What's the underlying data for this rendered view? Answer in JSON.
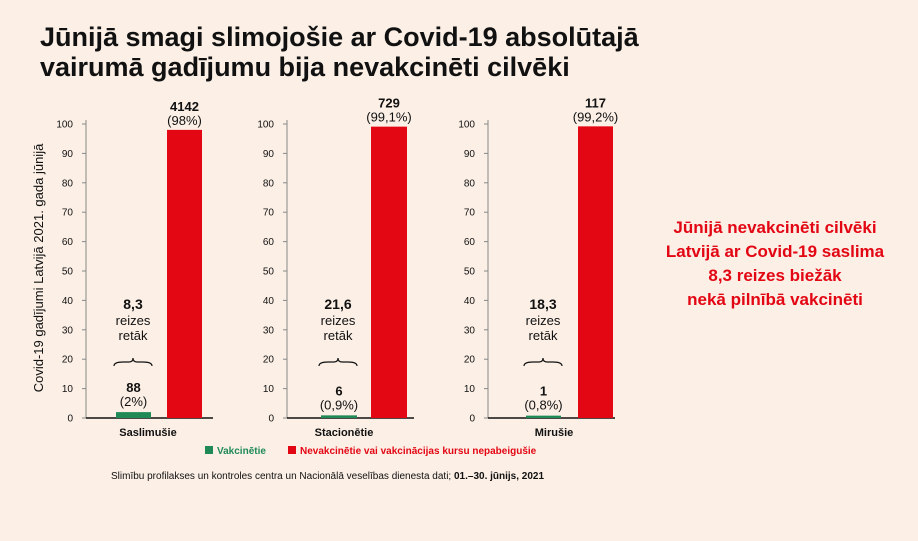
{
  "title_lines": [
    "Jūnijā smagi slimojošie ar Covid-19 absolūtajā",
    "vairumā gadījumu bija nevakcinēti cilvēki"
  ],
  "side_note_lines": [
    "Jūnijā nevakcinēti cilvēki",
    "Latvijā ar Covid-19 saslima",
    "8,3 reizes biežāk",
    "nekā pilnībā vakcinēti"
  ],
  "source": {
    "text": "Slimību profilakses un kontroles centra un Nacionālā veselības dienesta dati;",
    "date": "01.–30. jūnijs, 2021"
  },
  "colors": {
    "vaccinated": "#1f8a55",
    "unvaccinated": "#e30613",
    "accent_text": "#e30613"
  },
  "chart_data": {
    "type": "bar",
    "ylabel": "Covid-19 gadījumi Latvijā 2021. gada jūnijā",
    "ylim": [
      0,
      100
    ],
    "yticks": [
      0,
      10,
      20,
      30,
      40,
      50,
      60,
      70,
      80,
      90,
      100
    ],
    "legend": {
      "position": "bottom",
      "entries": [
        {
          "key": "vaccinated",
          "label": "Vakcinētie"
        },
        {
          "key": "unvaccinated",
          "label": "Nevakcinētie vai vakcinācijas kursu nepabeigušie"
        }
      ]
    },
    "groups": [
      {
        "category": "Saslimušie",
        "ratio": "8,3",
        "ratio_text": [
          "reizes",
          "retāk"
        ],
        "vaccinated": {
          "value": 2,
          "count": "88",
          "percent": "(2%)"
        },
        "unvaccinated": {
          "value": 98,
          "count": "4142",
          "percent": "(98%)"
        }
      },
      {
        "category": "Stacionētie",
        "ratio": "21,6",
        "ratio_text": [
          "reizes",
          "retāk"
        ],
        "vaccinated": {
          "value": 0.9,
          "count": "6",
          "percent": "(0,9%)"
        },
        "unvaccinated": {
          "value": 99.1,
          "count": "729",
          "percent": "(99,1%)"
        }
      },
      {
        "category": "Mirušie",
        "ratio": "18,3",
        "ratio_text": [
          "reizes",
          "retāk"
        ],
        "vaccinated": {
          "value": 0.8,
          "count": "1",
          "percent": "(0,8%)"
        },
        "unvaccinated": {
          "value": 99.2,
          "count": "117",
          "percent": "(99,2%)"
        }
      }
    ]
  }
}
